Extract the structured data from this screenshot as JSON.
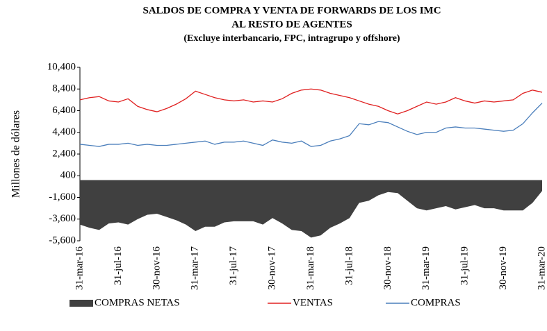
{
  "chart_data": {
    "type": "line",
    "title": "SALDOS DE COMPRA Y VENTA DE FORWARDS DE LOS IMC",
    "subtitle": "AL RESTO DE AGENTES",
    "note": "(Excluye interbancario, FPC, intragrupo y offshore)",
    "y_label": "Millones  de dólares",
    "categories": [
      "31-mar-16",
      null,
      null,
      null,
      "31-jul-16",
      null,
      null,
      null,
      "30-nov-16",
      null,
      null,
      null,
      "31-mar-17",
      null,
      null,
      null,
      "31-jul-17",
      null,
      null,
      null,
      "30-nov-17",
      null,
      null,
      null,
      "31-mar-18",
      null,
      null,
      null,
      "31-jul-18",
      null,
      null,
      null,
      "30-nov-18",
      null,
      null,
      null,
      "31-mar-19",
      null,
      null,
      null,
      "31-jul-19",
      null,
      null,
      null,
      "30-nov-19",
      null,
      null,
      null,
      "31-mar-20"
    ],
    "series": [
      {
        "name": "COMPRAS NETAS",
        "color": "#404040",
        "style": "area",
        "values": [
          -4100,
          -4400,
          -4600,
          -4000,
          -3900,
          -4100,
          -3600,
          -3200,
          -3100,
          -3400,
          -3700,
          -4100,
          -4700,
          -4300,
          -4300,
          -3900,
          -3800,
          -3800,
          -3800,
          -4100,
          -3500,
          -4000,
          -4600,
          -4700,
          -5300,
          -5100,
          -4400,
          -4000,
          -3500,
          -2100,
          -1900,
          -1400,
          -1100,
          -1200,
          -1900,
          -2600,
          -2800,
          -2600,
          -2400,
          -2700,
          -2500,
          -2300,
          -2600,
          -2600,
          -2800,
          -2800,
          -2800,
          -2100,
          -1000
        ]
      },
      {
        "name": "VENTAS",
        "color": "#e02020",
        "style": "line",
        "values": [
          7400,
          7600,
          7700,
          7300,
          7200,
          7500,
          6800,
          6500,
          6300,
          6600,
          7000,
          7500,
          8200,
          7900,
          7600,
          7400,
          7300,
          7400,
          7200,
          7300,
          7200,
          7500,
          8000,
          8300,
          8400,
          8300,
          8000,
          7800,
          7600,
          7300,
          7000,
          6800,
          6400,
          6100,
          6400,
          6800,
          7200,
          7000,
          7200,
          7600,
          7300,
          7100,
          7300,
          7200,
          7300,
          7400,
          8000,
          8300,
          8100
        ]
      },
      {
        "name": "COMPRAS",
        "color": "#4a7ebb",
        "style": "line",
        "values": [
          3300,
          3200,
          3100,
          3300,
          3300,
          3400,
          3200,
          3300,
          3200,
          3200,
          3300,
          3400,
          3500,
          3600,
          3300,
          3500,
          3500,
          3600,
          3400,
          3200,
          3700,
          3500,
          3400,
          3600,
          3100,
          3200,
          3600,
          3800,
          4100,
          5200,
          5100,
          5400,
          5300,
          4900,
          4500,
          4200,
          4400,
          4400,
          4800,
          4900,
          4800,
          4800,
          4700,
          4600,
          4500,
          4600,
          5200,
          6200,
          7100
        ]
      }
    ],
    "ylim": [
      -5600,
      10400
    ],
    "yticks": [
      {
        "value": -5600,
        "label": "-5,600"
      },
      {
        "value": -3600,
        "label": "-3,600"
      },
      {
        "value": -1600,
        "label": "-1,600"
      },
      400,
      {
        "value": 2400,
        "label": "2,400"
      },
      {
        "value": 4400,
        "label": "4,400"
      },
      {
        "value": 6400,
        "label": "6,400"
      },
      {
        "value": 8400,
        "label": "8,400"
      },
      {
        "value": 10400,
        "label": "10,400"
      }
    ],
    "grid": false,
    "legend": "bottom"
  }
}
